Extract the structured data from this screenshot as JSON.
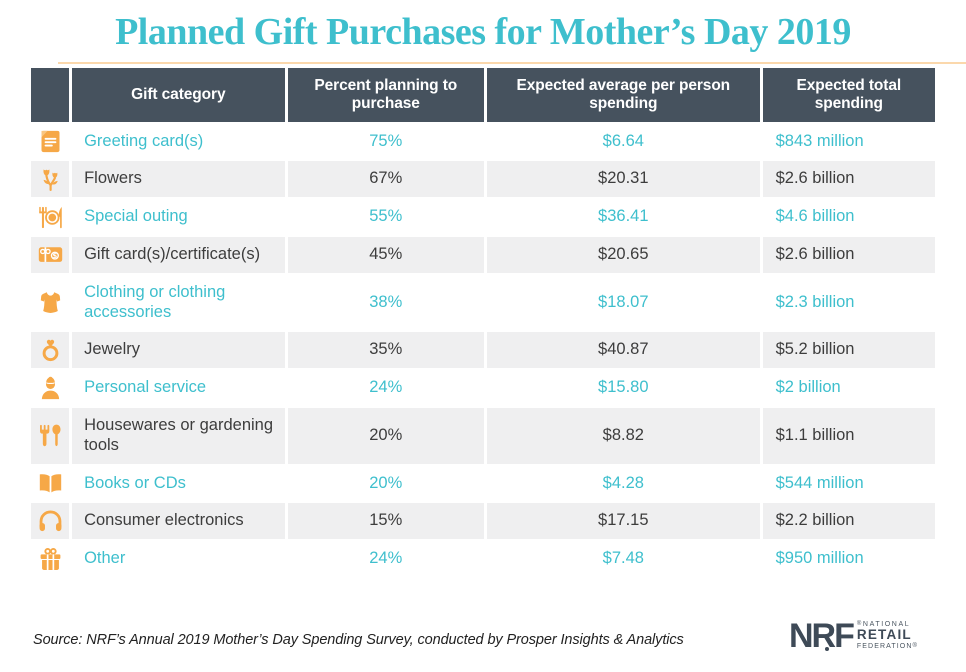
{
  "title": "Planned Gift Purchases for Mother’s Day 2019",
  "table": {
    "headers": {
      "category": "Gift category",
      "percent": "Percent planning to purchase",
      "average": "Expected average per person spending",
      "total": "Expected total spending"
    },
    "rows": [
      {
        "icon": "greeting-card-icon",
        "category": "Greeting card(s)",
        "percent": "75%",
        "average": "$6.64",
        "total": "$843 million",
        "highlighted": true
      },
      {
        "icon": "flowers-icon",
        "category": "Flowers",
        "percent": "67%",
        "average": "$20.31",
        "total": "$2.6 billion",
        "highlighted": false
      },
      {
        "icon": "special-outing-icon",
        "category": "Special outing",
        "percent": "55%",
        "average": "$36.41",
        "total": "$4.6 billion",
        "highlighted": true
      },
      {
        "icon": "gift-card-icon",
        "category": "Gift card(s)/certificate(s)",
        "percent": "45%",
        "average": "$20.65",
        "total": "$2.6 billion",
        "highlighted": false
      },
      {
        "icon": "clothing-icon",
        "category": "Clothing or clothing accessories",
        "percent": "38%",
        "average": "$18.07",
        "total": "$2.3 billion",
        "highlighted": true
      },
      {
        "icon": "jewelry-ring-icon",
        "category": "Jewelry",
        "percent": "35%",
        "average": "$40.87",
        "total": "$5.2 billion",
        "highlighted": false
      },
      {
        "icon": "personal-service-icon",
        "category": "Personal service",
        "percent": "24%",
        "average": "$15.80",
        "total": "$2 billion",
        "highlighted": true
      },
      {
        "icon": "housewares-icon",
        "category": "Housewares or gardening tools",
        "percent": "20%",
        "average": "$8.82",
        "total": "$1.1 billion",
        "highlighted": false
      },
      {
        "icon": "books-icon",
        "category": "Books or CDs",
        "percent": "20%",
        "average": "$4.28",
        "total": "$544 million",
        "highlighted": true
      },
      {
        "icon": "headphones-icon",
        "category": "Consumer electronics",
        "percent": "15%",
        "average": "$17.15",
        "total": "$2.2 billion",
        "highlighted": false
      },
      {
        "icon": "gift-box-icon",
        "category": "Other",
        "percent": "24%",
        "average": "$7.48",
        "total": "$950 million",
        "highlighted": true
      }
    ]
  },
  "footer": {
    "source": "Source: NRF’s Annual 2019 Mother’s Day Spending Survey, conducted by Prosper Insights & Analytics"
  },
  "logo": {
    "abbr": "NRF",
    "line1": "NATIONAL",
    "line2": "RETAIL",
    "line3": "FEDERATION",
    "reg": "®"
  },
  "colors": {
    "accent_teal": "#3EBFCD",
    "icon_orange": "#F6A847",
    "header_slate": "#46525E",
    "row_gray": "#EFEFF0",
    "text_dark": "#3D3D3D"
  },
  "chart_data": {
    "type": "table",
    "title": "Planned Gift Purchases for Mother’s Day 2019",
    "columns": [
      "Gift category",
      "Percent planning to purchase",
      "Expected average per person spending",
      "Expected total spending"
    ],
    "rows": [
      [
        "Greeting card(s)",
        "75%",
        "$6.64",
        "$843 million"
      ],
      [
        "Flowers",
        "67%",
        "$20.31",
        "$2.6 billion"
      ],
      [
        "Special outing",
        "55%",
        "$36.41",
        "$4.6 billion"
      ],
      [
        "Gift card(s)/certificate(s)",
        "45%",
        "$20.65",
        "$2.6 billion"
      ],
      [
        "Clothing or clothing accessories",
        "38%",
        "$18.07",
        "$2.3 billion"
      ],
      [
        "Jewelry",
        "35%",
        "$40.87",
        "$5.2 billion"
      ],
      [
        "Personal service",
        "24%",
        "$15.80",
        "$2 billion"
      ],
      [
        "Housewares or gardening tools",
        "20%",
        "$8.82",
        "$1.1 billion"
      ],
      [
        "Books or CDs",
        "20%",
        "$4.28",
        "$544 million"
      ],
      [
        "Consumer electronics",
        "15%",
        "$17.15",
        "$2.2 billion"
      ],
      [
        "Other",
        "24%",
        "$7.48",
        "$950 million"
      ]
    ],
    "source": "Source: NRF’s Annual 2019 Mother’s Day Spending Survey, conducted by Prosper Insights & Analytics",
    "legend_position": "none",
    "grid": false
  }
}
